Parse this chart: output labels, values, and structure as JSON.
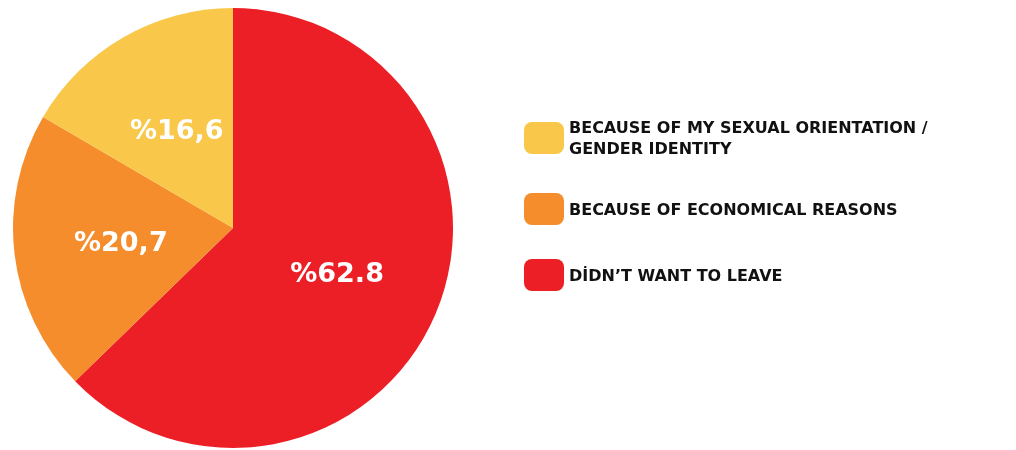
{
  "chart_data": {
    "type": "pie",
    "categories": [
      "DİDN’T WANT TO LEAVE",
      "BECAUSE OF ECONOMICAL REASONS",
      "BECAUSE OF MY SEXUAL ORIENTATION / GENDER IDENTITY"
    ],
    "values": [
      62.8,
      20.7,
      16.6
    ],
    "colors": [
      "#ed1f26",
      "#f58d2c",
      "#f9c84a"
    ],
    "value_labels": [
      "%62.8",
      "%20,7",
      "%16,6"
    ],
    "legend": "right"
  }
}
